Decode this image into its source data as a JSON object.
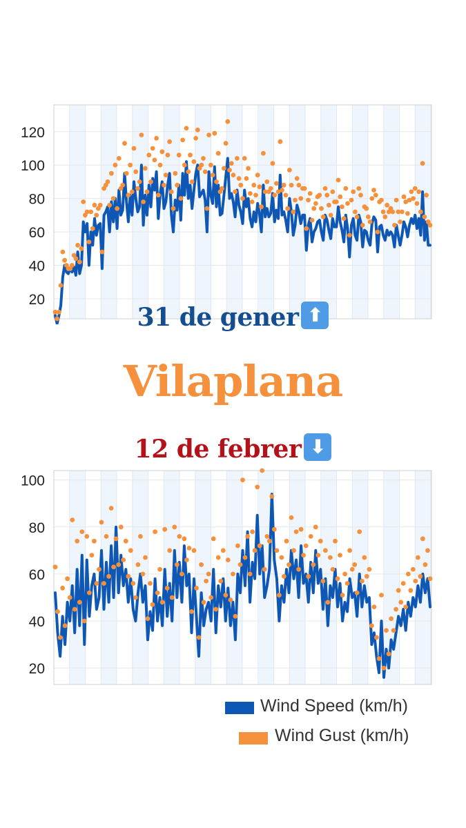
{
  "colors": {
    "wind_speed": "#0f57b5",
    "wind_gust": "#f5913d",
    "band": "#eef5fc",
    "caption_up": "#154d91",
    "caption_down": "#b5111b",
    "title": "#f5913d",
    "arrow_box": "#4f9be6"
  },
  "captions": {
    "top_date": "31 de gener",
    "top_arrow_icon": "up-arrow-icon",
    "top_arrow": "⬆",
    "place": "Vilaplana",
    "bottom_date": "12 de febrer",
    "bottom_arrow_icon": "down-arrow-icon",
    "bottom_arrow": "⬇"
  },
  "legend": [
    {
      "label": "Wind Speed (km/h)",
      "color": "#0f57b5"
    },
    {
      "label": "Wind Gust (km/h)",
      "color": "#f5913d"
    }
  ],
  "chart_data": [
    {
      "type": "line",
      "date": "31 de gener",
      "ylim": [
        8,
        136
      ],
      "yticks": [
        20,
        40,
        60,
        80,
        100,
        120
      ],
      "grid": true,
      "bands": true,
      "series": [
        {
          "name": "Wind Speed (km/h)",
          "style": "line",
          "color": "#0f57b5",
          "values": [
            10,
            5,
            10,
            16,
            33,
            40,
            36,
            35,
            38,
            36,
            39,
            34,
            48,
            35,
            40,
            66,
            60,
            65,
            40,
            60,
            52,
            68,
            58,
            64,
            65,
            38,
            70,
            72,
            75,
            60,
            78,
            66,
            80,
            62,
            85,
            70,
            73,
            95,
            78,
            66,
            82,
            70,
            90,
            80,
            72,
            75,
            100,
            64,
            82,
            70,
            88,
            75,
            92,
            85,
            96,
            68,
            83,
            90,
            74,
            78,
            88,
            95,
            70,
            60,
            79,
            73,
            88,
            67,
            95,
            82,
            102,
            80,
            88,
            74,
            85,
            95,
            100,
            81,
            83,
            85,
            79,
            60,
            96,
            82,
            77,
            99,
            75,
            88,
            70,
            71,
            82,
            93,
            104,
            80,
            83,
            78,
            69,
            85,
            76,
            72,
            65,
            85,
            75,
            80,
            68,
            63,
            72,
            66,
            77,
            71,
            60,
            88,
            69,
            74,
            69,
            71,
            83,
            66,
            73,
            68,
            94,
            70,
            72,
            67,
            60,
            80,
            72,
            58,
            64,
            76,
            72,
            65,
            70,
            70,
            49,
            64,
            68,
            54,
            60,
            62,
            66,
            67,
            60,
            55,
            70,
            67,
            61,
            56,
            68,
            63,
            63,
            75,
            66,
            61,
            54,
            70,
            62,
            45,
            64,
            68,
            58,
            55,
            70,
            66,
            51,
            61,
            60,
            55,
            52,
            65,
            69,
            67,
            48,
            63,
            64,
            58,
            55,
            61,
            58,
            60,
            58,
            51,
            64,
            58,
            52,
            58,
            66,
            63,
            57,
            64,
            68,
            65,
            70,
            62,
            68,
            58,
            84,
            55,
            66,
            52,
            52
          ]
        },
        {
          "name": "Wind Gust (km/h)",
          "style": "scatter",
          "color": "#f5913d",
          "values": [
            12,
            8,
            12,
            28,
            48,
            43,
            40,
            38,
            38,
            40,
            46,
            44,
            52,
            42,
            50,
            78,
            70,
            72,
            54,
            72,
            62,
            76,
            70,
            74,
            76,
            48,
            86,
            88,
            90,
            76,
            95,
            80,
            100,
            74,
            104,
            86,
            88,
            113,
            95,
            82,
            100,
            84,
            110,
            96,
            86,
            90,
            118,
            78,
            98,
            84,
            106,
            90,
            110,
            103,
            116,
            82,
            100,
            108,
            88,
            94,
            106,
            114,
            84,
            74,
            95,
            88,
            106,
            80,
            115,
            100,
            122,
            96,
            106,
            90,
            102,
            116,
            121,
            98,
            100,
            104,
            96,
            74,
            118,
            100,
            94,
            119,
            90,
            107,
            84,
            86,
            98,
            113,
            126,
            97,
            101,
            94,
            84,
            104,
            92,
            88,
            80,
            104,
            92,
            98,
            83,
            78,
            88,
            82,
            94,
            87,
            75,
            107,
            84,
            90,
            84,
            86,
            101,
            82,
            89,
            84,
            114,
            85,
            88,
            82,
            74,
            97,
            88,
            72,
            79,
            92,
            88,
            80,
            86,
            86,
            62,
            79,
            83,
            67,
            74,
            77,
            81,
            82,
            74,
            69,
            86,
            82,
            76,
            70,
            84,
            78,
            78,
            91,
            81,
            75,
            68,
            86,
            77,
            58,
            79,
            84,
            72,
            69,
            86,
            82,
            64,
            75,
            74,
            69,
            66,
            80,
            85,
            82,
            60,
            78,
            79,
            72,
            69,
            76,
            72,
            74,
            72,
            64,
            79,
            72,
            66,
            72,
            81,
            78,
            71,
            79,
            84,
            80,
            86,
            77,
            84,
            72,
            101,
            69,
            82,
            66,
            64
          ]
        }
      ]
    },
    {
      "type": "line",
      "date": "12 de febrer",
      "ylim": [
        13,
        104
      ],
      "yticks": [
        20,
        40,
        60,
        80,
        100
      ],
      "grid": true,
      "bands": true,
      "series": [
        {
          "name": "Wind Speed (km/h)",
          "style": "line",
          "color": "#0f57b5",
          "values": [
            52,
            35,
            25,
            42,
            30,
            48,
            40,
            55,
            35,
            62,
            38,
            68,
            30,
            66,
            42,
            55,
            60,
            45,
            50,
            70,
            45,
            65,
            48,
            72,
            50,
            80,
            52,
            68,
            55,
            62,
            48,
            58,
            45,
            40,
            52,
            60,
            48,
            55,
            32,
            44,
            36,
            58,
            40,
            50,
            38,
            62,
            42,
            56,
            40,
            70,
            50,
            65,
            48,
            72,
            55,
            60,
            35,
            58,
            42,
            25,
            52,
            38,
            45,
            48,
            40,
            62,
            35,
            55,
            46,
            58,
            40,
            54,
            38,
            48,
            32,
            60,
            52,
            70,
            55,
            78,
            48,
            65,
            58,
            85,
            60,
            72,
            50,
            55,
            62,
            94,
            66,
            58,
            40,
            55,
            48,
            62,
            52,
            70,
            58,
            66,
            50,
            72,
            56,
            60,
            48,
            65,
            52,
            70,
            56,
            62,
            45,
            58,
            38,
            55,
            50,
            62,
            46,
            56,
            40,
            48,
            44,
            58,
            50,
            52,
            42,
            60,
            46,
            55,
            48,
            50,
            30,
            35,
            25,
            18,
            40,
            16,
            28,
            20,
            32,
            28,
            35,
            42,
            38,
            45,
            36,
            48,
            42,
            50,
            46,
            55,
            48,
            60,
            52,
            58,
            46
          ]
        },
        {
          "name": "Wind Gust (km/h)",
          "style": "scatter",
          "color": "#f5913d",
          "values": [
            63,
            44,
            33,
            54,
            38,
            58,
            50,
            83,
            45,
            74,
            48,
            78,
            40,
            76,
            52,
            68,
            74,
            56,
            62,
            82,
            56,
            76,
            59,
            88,
            63,
            75,
            64,
            80,
            66,
            74,
            59,
            70,
            56,
            50,
            64,
            76,
            60,
            67,
            41,
            56,
            47,
            78,
            52,
            62,
            48,
            79,
            54,
            70,
            50,
            80,
            64,
            76,
            60,
            75,
            66,
            71,
            44,
            70,
            54,
            33,
            64,
            48,
            57,
            60,
            50,
            75,
            45,
            67,
            57,
            70,
            51,
            66,
            49,
            60,
            42,
            72,
            64,
            100,
            67,
            76,
            60,
            78,
            70,
            97,
            72,
            104,
            62,
            76,
            74,
            93,
            79,
            70,
            51,
            67,
            59,
            74,
            64,
            84,
            70,
            78,
            62,
            79,
            68,
            72,
            59,
            76,
            64,
            80,
            68,
            74,
            57,
            70,
            48,
            67,
            62,
            74,
            58,
            68,
            51,
            60,
            56,
            70,
            62,
            64,
            52,
            78,
            57,
            67,
            59,
            62,
            38,
            46,
            33,
            24,
            51,
            20,
            36,
            26,
            41,
            36,
            45,
            53,
            48,
            56,
            46,
            60,
            53,
            62,
            57,
            67,
            59,
            75,
            64,
            70,
            58
          ]
        }
      ]
    }
  ]
}
